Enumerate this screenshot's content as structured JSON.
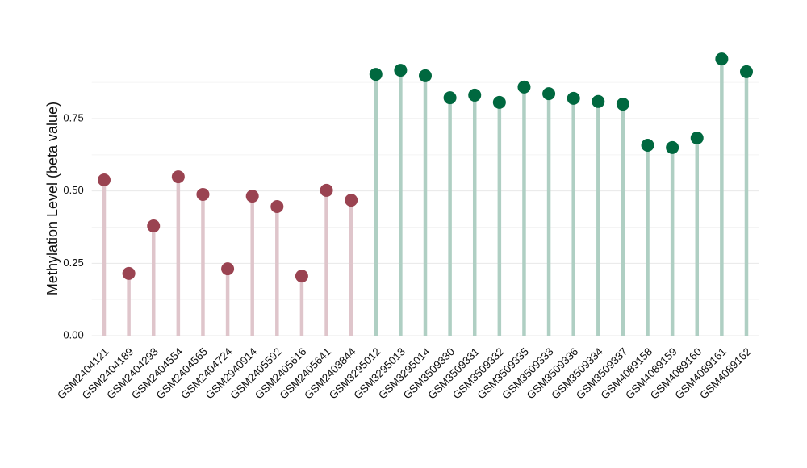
{
  "chart_data": {
    "type": "lollipop",
    "y_label": "Methylation Level (beta value)",
    "categories": [
      "GSM2404121",
      "GSM2404189",
      "GSM2404293",
      "GSM2404554",
      "GSM2404565",
      "GSM2404724",
      "GSM2940914",
      "GSM2405592",
      "GSM2405616",
      "GSM2405641",
      "GSM2403844",
      "GSM3295012",
      "GSM3295013",
      "GSM3295014",
      "GSM3509330",
      "GSM3509331",
      "GSM3509332",
      "GSM3509335",
      "GSM3509333",
      "GSM3509336",
      "GSM3509334",
      "GSM3509337",
      "GSM4089158",
      "GSM4089159",
      "GSM4089160",
      "GSM4089161",
      "GSM4089162"
    ],
    "values": [
      0.538,
      0.215,
      0.379,
      0.549,
      0.488,
      0.231,
      0.482,
      0.446,
      0.206,
      0.502,
      0.468,
      0.903,
      0.917,
      0.898,
      0.822,
      0.831,
      0.806,
      0.859,
      0.836,
      0.82,
      0.809,
      0.8,
      0.658,
      0.65,
      0.683,
      0.956,
      0.912
    ],
    "colors": [
      "#9a4351",
      "#9a4351",
      "#9a4351",
      "#9a4351",
      "#9a4351",
      "#9a4351",
      "#9a4351",
      "#9a4351",
      "#9a4351",
      "#9a4351",
      "#9a4351",
      "#00683f",
      "#00683f",
      "#00683f",
      "#00683f",
      "#00683f",
      "#00683f",
      "#00683f",
      "#00683f",
      "#00683f",
      "#00683f",
      "#00683f",
      "#00683f",
      "#00683f",
      "#00683f",
      "#00683f",
      "#00683f"
    ],
    "stem_colors": [
      "#dfc5cb",
      "#dfc5cb",
      "#dfc5cb",
      "#dfc5cb",
      "#dfc5cb",
      "#dfc5cb",
      "#dfc5cb",
      "#dfc5cb",
      "#dfc5cb",
      "#dfc5cb",
      "#dfc5cb",
      "#afcfc3",
      "#afcfc3",
      "#afcfc3",
      "#afcfc3",
      "#afcfc3",
      "#afcfc3",
      "#afcfc3",
      "#afcfc3",
      "#afcfc3",
      "#afcfc3",
      "#afcfc3",
      "#afcfc3",
      "#afcfc3",
      "#afcfc3",
      "#afcfc3",
      "#afcfc3"
    ],
    "ylim": [
      0,
      1.0
    ],
    "yticks": [
      {
        "value": 0,
        "label": "0.00"
      },
      {
        "value": 0.25,
        "label": "0.25"
      },
      {
        "value": 0.5,
        "label": "0.50"
      },
      {
        "value": 0.75,
        "label": "0.75"
      }
    ],
    "minor_yticks": [
      0.125,
      0.375,
      0.625,
      0.875
    ],
    "grid": true
  }
}
